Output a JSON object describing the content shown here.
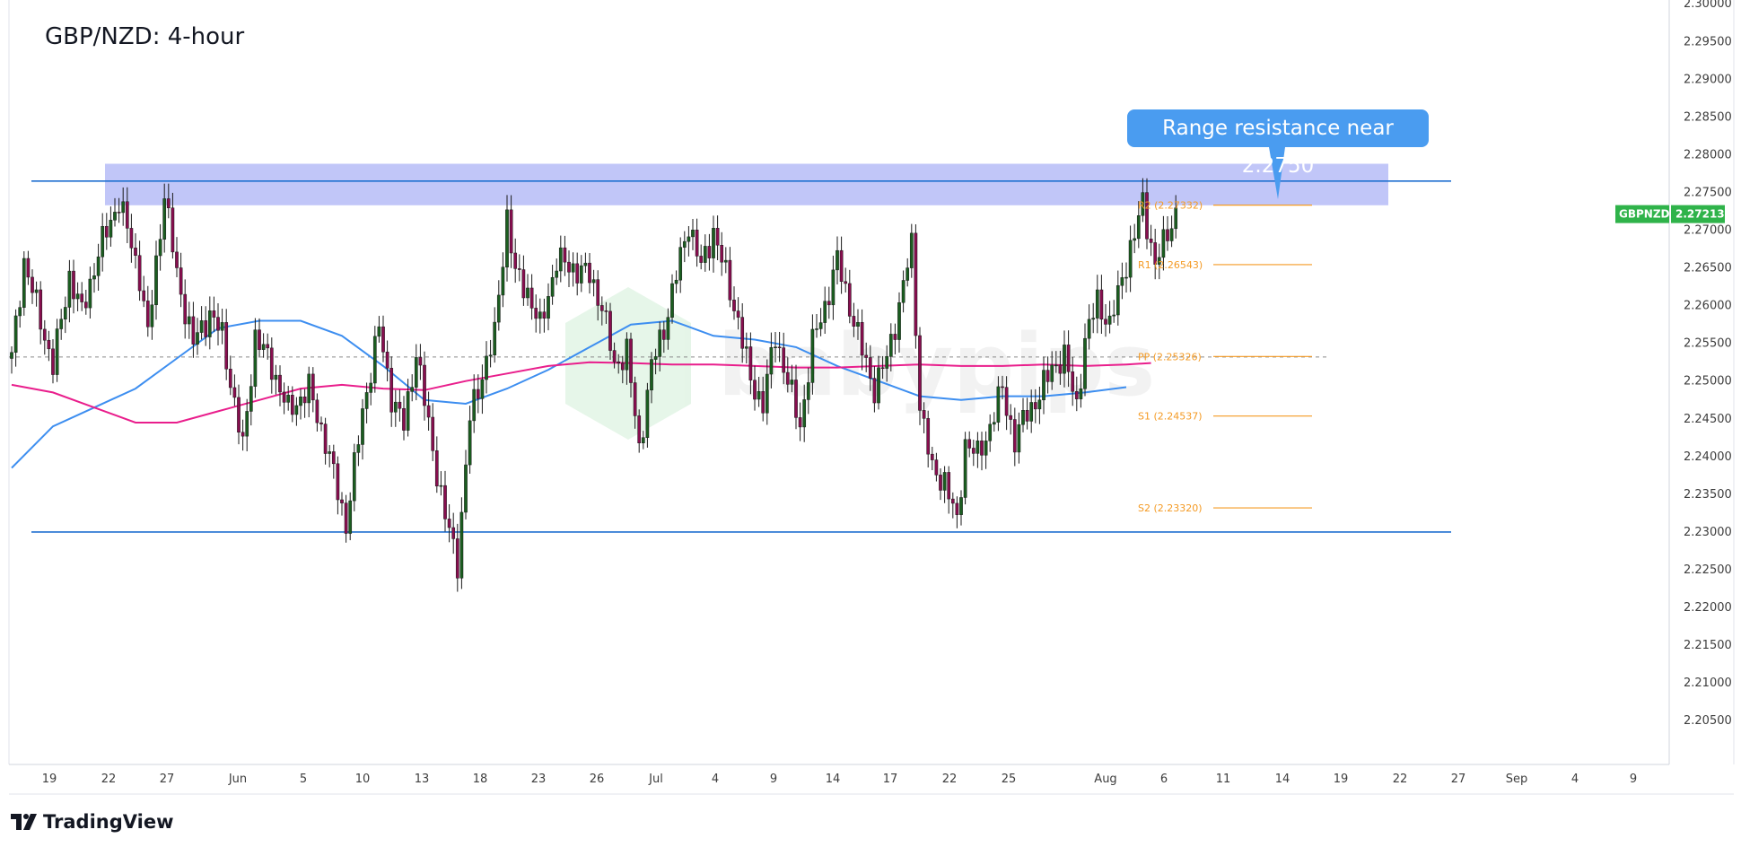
{
  "header": {
    "title": "GBP/NZD: 4-hour"
  },
  "annotations": {
    "callout": "Range resistance near 2.2750"
  },
  "price_tag": {
    "symbol": "GBPNZD",
    "value": "2.27213",
    "color": "#2fb34a"
  },
  "watermark": "babypips",
  "branding": {
    "name": "TradingView"
  },
  "colors": {
    "up_candle": "#1b5e20",
    "down_candle": "#880e4f",
    "ma_fast": "#3d8ef0",
    "ma_slow": "#e91e8c",
    "range_line": "#1f6fd0",
    "zone": "#9fa8f5",
    "pivot": "#f49a23",
    "callout": "#4a9cf0"
  },
  "chart_data": {
    "type": "candlestick",
    "title": "GBP/NZD: 4-hour",
    "ylim": [
      2.2,
      2.3
    ],
    "y_ticks": [
      "2.30000",
      "2.29500",
      "2.29000",
      "2.28500",
      "2.28000",
      "2.27500",
      "2.27000",
      "2.26500",
      "2.26000",
      "2.25500",
      "2.25000",
      "2.24500",
      "2.24000",
      "2.23500",
      "2.23000",
      "2.22500",
      "2.22000",
      "2.21500",
      "2.21000",
      "2.20500"
    ],
    "x_ticks": [
      "19",
      "22",
      "27",
      "Jun",
      "5",
      "10",
      "13",
      "18",
      "23",
      "26",
      "Jul",
      "4",
      "9",
      "14",
      "17",
      "22",
      "25",
      "Aug",
      "6",
      "11",
      "14",
      "19",
      "22",
      "27",
      "Sep",
      "4",
      "9"
    ],
    "resistance_zone": [
      2.2733,
      2.2788
    ],
    "range_lines": [
      2.2765,
      2.23
    ],
    "dashed_level": 2.2532,
    "pivots": [
      {
        "label": "R2 (2.27332)",
        "value": 2.27332
      },
      {
        "label": "R1 (2.26543)",
        "value": 2.26543
      },
      {
        "label": "PP (2.25326)",
        "value": 2.25326
      },
      {
        "label": "S1 (2.24537)",
        "value": 2.24537
      },
      {
        "label": "S2 (2.23320)",
        "value": 2.2332
      }
    ],
    "last_price": 2.27213,
    "anchors": [
      [
        0,
        2.253
      ],
      [
        3,
        2.266
      ],
      [
        7,
        2.258
      ],
      [
        10,
        2.252
      ],
      [
        14,
        2.264
      ],
      [
        17,
        2.259
      ],
      [
        21,
        2.267
      ],
      [
        26,
        2.274
      ],
      [
        31,
        2.264
      ],
      [
        33,
        2.256
      ],
      [
        37,
        2.275
      ],
      [
        40,
        2.264
      ],
      [
        44,
        2.255
      ],
      [
        48,
        2.259
      ],
      [
        51,
        2.256
      ],
      [
        56,
        2.241
      ],
      [
        59,
        2.256
      ],
      [
        63,
        2.252
      ],
      [
        67,
        2.246
      ],
      [
        72,
        2.249
      ],
      [
        76,
        2.242
      ],
      [
        81,
        2.231
      ],
      [
        85,
        2.246
      ],
      [
        89,
        2.257
      ],
      [
        92,
        2.248
      ],
      [
        95,
        2.244
      ],
      [
        98,
        2.254
      ],
      [
        101,
        2.244
      ],
      [
        105,
        2.232
      ],
      [
        108,
        2.226
      ],
      [
        111,
        2.245
      ],
      [
        114,
        2.251
      ],
      [
        117,
        2.256
      ],
      [
        120,
        2.272
      ],
      [
        122,
        2.264
      ],
      [
        125,
        2.262
      ],
      [
        128,
        2.257
      ],
      [
        132,
        2.266
      ],
      [
        136,
        2.265
      ],
      [
        140,
        2.264
      ],
      [
        143,
        2.26
      ],
      [
        146,
        2.252
      ],
      [
        149,
        2.254
      ],
      [
        152,
        2.241
      ],
      [
        155,
        2.252
      ],
      [
        158,
        2.257
      ],
      [
        161,
        2.264
      ],
      [
        164,
        2.271
      ],
      [
        167,
        2.265
      ],
      [
        170,
        2.27
      ],
      [
        173,
        2.264
      ],
      [
        176,
        2.258
      ],
      [
        179,
        2.25
      ],
      [
        182,
        2.247
      ],
      [
        185,
        2.256
      ],
      [
        188,
        2.25
      ],
      [
        191,
        2.244
      ],
      [
        194,
        2.255
      ],
      [
        197,
        2.26
      ],
      [
        200,
        2.266
      ],
      [
        203,
        2.26
      ],
      [
        206,
        2.254
      ],
      [
        209,
        2.249
      ],
      [
        212,
        2.253
      ],
      [
        215,
        2.26
      ],
      [
        218,
        2.268
      ],
      [
        220,
        2.247
      ],
      [
        223,
        2.238
      ],
      [
        226,
        2.237
      ],
      [
        229,
        2.231
      ],
      [
        231,
        2.242
      ],
      [
        234,
        2.24
      ],
      [
        237,
        2.244
      ],
      [
        240,
        2.249
      ],
      [
        243,
        2.242
      ],
      [
        246,
        2.246
      ],
      [
        249,
        2.248
      ],
      [
        252,
        2.252
      ],
      [
        255,
        2.253
      ],
      [
        258,
        2.247
      ],
      [
        260,
        2.255
      ],
      [
        263,
        2.261
      ],
      [
        266,
        2.257
      ],
      [
        269,
        2.264
      ],
      [
        272,
        2.269
      ],
      [
        274,
        2.274
      ],
      [
        277,
        2.265
      ],
      [
        280,
        2.27
      ],
      [
        282,
        2.2721
      ]
    ],
    "ma_fast": [
      [
        0,
        2.2385
      ],
      [
        10,
        2.244
      ],
      [
        20,
        2.2465
      ],
      [
        30,
        2.249
      ],
      [
        40,
        2.253
      ],
      [
        50,
        2.257
      ],
      [
        60,
        2.258
      ],
      [
        70,
        2.258
      ],
      [
        80,
        2.256
      ],
      [
        90,
        2.252
      ],
      [
        100,
        2.2475
      ],
      [
        110,
        2.247
      ],
      [
        120,
        2.249
      ],
      [
        130,
        2.2515
      ],
      [
        140,
        2.2545
      ],
      [
        150,
        2.2575
      ],
      [
        160,
        2.258
      ],
      [
        170,
        2.256
      ],
      [
        180,
        2.2555
      ],
      [
        190,
        2.2545
      ],
      [
        200,
        2.252
      ],
      [
        210,
        2.25
      ],
      [
        220,
        2.248
      ],
      [
        230,
        2.2475
      ],
      [
        240,
        2.248
      ],
      [
        250,
        2.248
      ],
      [
        260,
        2.2485
      ],
      [
        270,
        2.2492
      ]
    ],
    "ma_slow": [
      [
        0,
        2.2495
      ],
      [
        10,
        2.2485
      ],
      [
        20,
        2.2465
      ],
      [
        30,
        2.2445
      ],
      [
        40,
        2.2445
      ],
      [
        50,
        2.246
      ],
      [
        60,
        2.2475
      ],
      [
        70,
        2.249
      ],
      [
        80,
        2.2495
      ],
      [
        90,
        2.249
      ],
      [
        100,
        2.2488
      ],
      [
        110,
        2.25
      ],
      [
        120,
        2.251
      ],
      [
        130,
        2.252
      ],
      [
        140,
        2.2525
      ],
      [
        150,
        2.2524
      ],
      [
        160,
        2.2522
      ],
      [
        170,
        2.2522
      ],
      [
        180,
        2.252
      ],
      [
        190,
        2.2518
      ],
      [
        200,
        2.2518
      ],
      [
        210,
        2.252
      ],
      [
        220,
        2.2522
      ],
      [
        230,
        2.252
      ],
      [
        240,
        2.252
      ],
      [
        250,
        2.2522
      ],
      [
        260,
        2.252
      ],
      [
        270,
        2.2522
      ],
      [
        276,
        2.2524
      ]
    ]
  }
}
